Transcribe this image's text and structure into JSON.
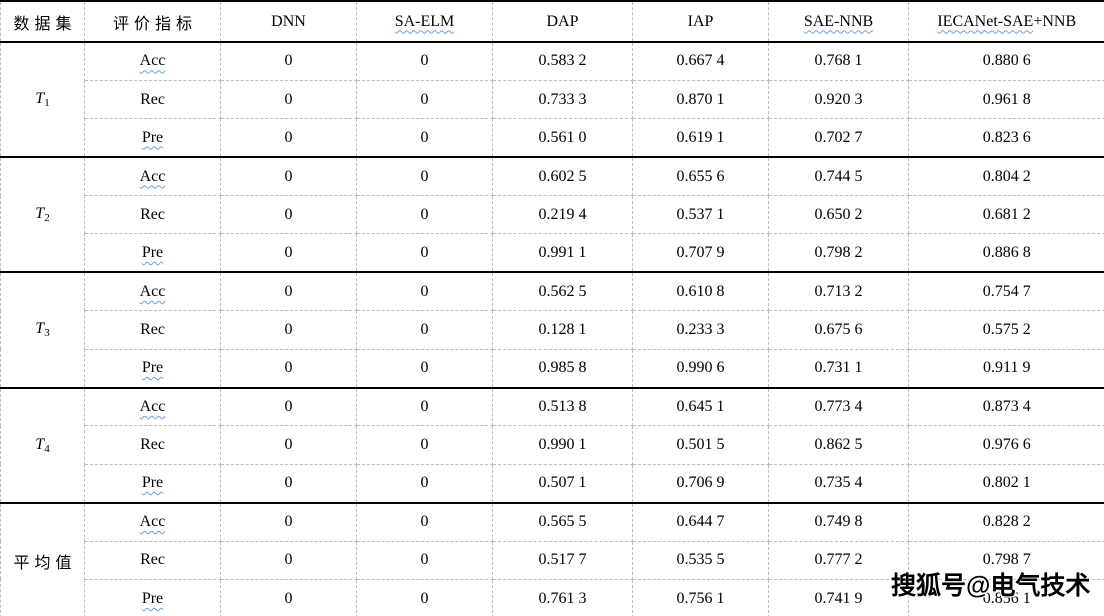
{
  "table": {
    "header": {
      "dataset_col": "数据集",
      "metric_col": "评价指标",
      "methods": [
        "DNN",
        "SA-ELM",
        "DAP",
        "IAP",
        "SAE-NNB",
        "IECANet-SAE+NNB"
      ],
      "method_last_wavy_part": "IECANet-SAE",
      "method_last_plain_part": "+NNB"
    },
    "groups": [
      {
        "dataset_base": "T",
        "dataset_sub": "1",
        "rows": [
          {
            "metric": "Acc",
            "values": [
              "0",
              "0",
              "0.583 2",
              "0.667 4",
              "0.768 1",
              "0.880 6"
            ]
          },
          {
            "metric": "Rec",
            "values": [
              "0",
              "0",
              "0.733 3",
              "0.870 1",
              "0.920 3",
              "0.961 8"
            ]
          },
          {
            "metric": "Pre",
            "values": [
              "0",
              "0",
              "0.561 0",
              "0.619 1",
              "0.702 7",
              "0.823 6"
            ]
          }
        ]
      },
      {
        "dataset_base": "T",
        "dataset_sub": "2",
        "rows": [
          {
            "metric": "Acc",
            "values": [
              "0",
              "0",
              "0.602 5",
              "0.655 6",
              "0.744 5",
              "0.804 2"
            ]
          },
          {
            "metric": "Rec",
            "values": [
              "0",
              "0",
              "0.219 4",
              "0.537 1",
              "0.650 2",
              "0.681 2"
            ]
          },
          {
            "metric": "Pre",
            "values": [
              "0",
              "0",
              "0.991 1",
              "0.707 9",
              "0.798 2",
              "0.886 8"
            ]
          }
        ]
      },
      {
        "dataset_base": "T",
        "dataset_sub": "3",
        "rows": [
          {
            "metric": "Acc",
            "values": [
              "0",
              "0",
              "0.562 5",
              "0.610 8",
              "0.713 2",
              "0.754 7"
            ]
          },
          {
            "metric": "Rec",
            "values": [
              "0",
              "0",
              "0.128 1",
              "0.233 3",
              "0.675 6",
              "0.575 2"
            ]
          },
          {
            "metric": "Pre",
            "values": [
              "0",
              "0",
              "0.985 8",
              "0.990 6",
              "0.731 1",
              "0.911 9"
            ]
          }
        ]
      },
      {
        "dataset_base": "T",
        "dataset_sub": "4",
        "rows": [
          {
            "metric": "Acc",
            "values": [
              "0",
              "0",
              "0.513 8",
              "0.645 1",
              "0.773 4",
              "0.873 4"
            ]
          },
          {
            "metric": "Rec",
            "values": [
              "0",
              "0",
              "0.990 1",
              "0.501 5",
              "0.862 5",
              "0.976 6"
            ]
          },
          {
            "metric": "Pre",
            "values": [
              "0",
              "0",
              "0.507 1",
              "0.706 9",
              "0.735 4",
              "0.802 1"
            ]
          }
        ]
      },
      {
        "dataset_label": "平均值",
        "rows": [
          {
            "metric": "Acc",
            "values": [
              "0",
              "0",
              "0.565 5",
              "0.644 7",
              "0.749 8",
              "0.828 2"
            ]
          },
          {
            "metric": "Rec",
            "values": [
              "0",
              "0",
              "0.517 7",
              "0.535 5",
              "0.777 2",
              "0.798 7"
            ]
          },
          {
            "metric": "Pre",
            "values": [
              "0",
              "0",
              "0.761 3",
              "0.756 1",
              "0.741 9",
              "0.856 1"
            ]
          }
        ]
      }
    ]
  },
  "watermark": {
    "text": "搜狐号@电气技术"
  },
  "colors": {
    "grid_dashed": "#bdbdbd",
    "grid_solid": "#000000",
    "spellcheck_squiggle": "#6a9fe0",
    "watermark_fill": "#000000",
    "watermark_outline": "#ffffff",
    "background": "#ffffff"
  }
}
